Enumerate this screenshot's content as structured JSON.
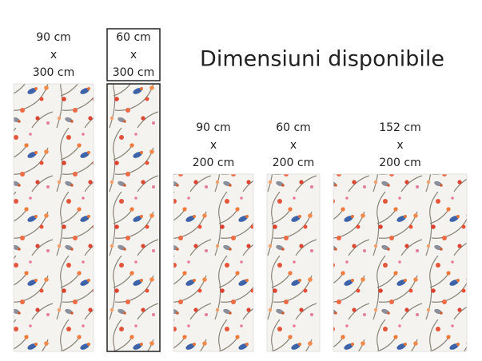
{
  "title": "Dimensiuni disponibile",
  "sizes": [
    {
      "width": "90 cm",
      "separator": "x",
      "height": "300 cm"
    },
    {
      "width": "60 cm",
      "separator": "x",
      "height": "300 cm"
    },
    {
      "width": "90 cm",
      "separator": "x",
      "height": "200 cm"
    },
    {
      "width": "60 cm",
      "separator": "x",
      "height": "200 cm"
    },
    {
      "width": "152 cm",
      "separator": "x",
      "height": "200 cm"
    }
  ]
}
